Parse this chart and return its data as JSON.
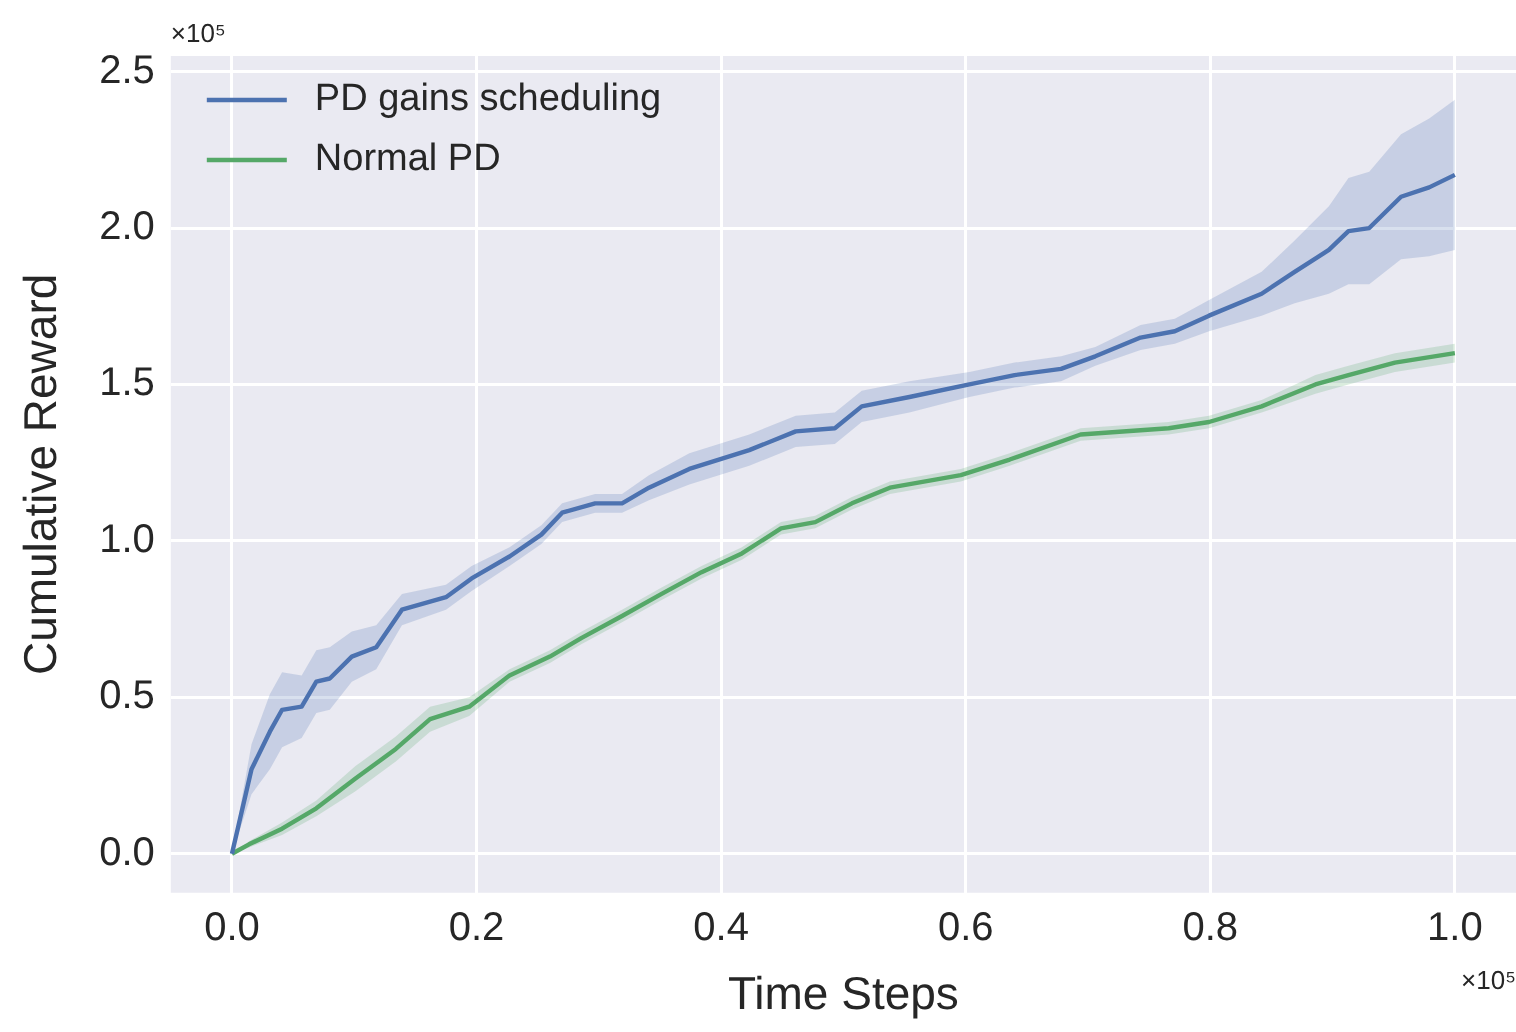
{
  "chart_data": {
    "type": "line",
    "xlabel": "Time Steps",
    "ylabel": "Cumulative Reward",
    "annotations": [
      "×10⁵",
      "×10⁵"
    ],
    "xlim": [
      -0.05,
      1.05
    ],
    "ylim": [
      -0.125,
      2.55
    ],
    "xticks": [
      {
        "value": 0,
        "label": "0.0"
      },
      {
        "value": 0.2,
        "label": "0.2"
      },
      {
        "value": 0.4,
        "label": "0.4"
      },
      {
        "value": 0.6,
        "label": "0.6"
      },
      {
        "value": 0.8,
        "label": "0.8"
      },
      {
        "value": 1,
        "label": "1.0"
      }
    ],
    "yticks": [
      {
        "value": 0,
        "label": "0.0"
      },
      {
        "value": 0.5,
        "label": "0.5"
      },
      {
        "value": 1,
        "label": "1.0"
      },
      {
        "value": 1.5,
        "label": "1.5"
      },
      {
        "value": 2,
        "label": "2.0"
      },
      {
        "value": 2.5,
        "label": "2.5"
      }
    ],
    "grid": true,
    "legend": "top left",
    "marker": "none",
    "line_style": "solid",
    "series": [
      {
        "name": "PD gains scheduling",
        "color": "#4c72b0",
        "x": [
          0,
          0.016,
          0.031,
          0.041,
          0.057,
          0.069,
          0.08,
          0.098,
          0.118,
          0.139,
          0.175,
          0.196,
          0.227,
          0.253,
          0.27,
          0.297,
          0.319,
          0.341,
          0.374,
          0.423,
          0.461,
          0.493,
          0.515,
          0.554,
          0.603,
          0.64,
          0.678,
          0.706,
          0.743,
          0.771,
          0.799,
          0.842,
          0.869,
          0.897,
          0.913,
          0.93,
          0.956,
          0.979,
          1.0
        ],
        "values": [
          0,
          0.27,
          0.39,
          0.46,
          0.47,
          0.55,
          0.56,
          0.63,
          0.66,
          0.78,
          0.82,
          0.88,
          0.95,
          1.02,
          1.09,
          1.12,
          1.12,
          1.17,
          1.23,
          1.29,
          1.35,
          1.36,
          1.43,
          1.46,
          1.5,
          1.53,
          1.55,
          1.59,
          1.65,
          1.67,
          1.72,
          1.79,
          1.86,
          1.93,
          1.99,
          2.0,
          2.1,
          2.13,
          2.17
        ],
        "lower": [
          0,
          0.19,
          0.27,
          0.34,
          0.37,
          0.45,
          0.46,
          0.55,
          0.59,
          0.73,
          0.78,
          0.84,
          0.92,
          0.99,
          1.06,
          1.09,
          1.09,
          1.13,
          1.18,
          1.24,
          1.3,
          1.31,
          1.38,
          1.41,
          1.46,
          1.49,
          1.51,
          1.56,
          1.61,
          1.63,
          1.67,
          1.72,
          1.76,
          1.79,
          1.82,
          1.82,
          1.9,
          1.91,
          1.93
        ],
        "upper": [
          0,
          0.35,
          0.51,
          0.58,
          0.57,
          0.65,
          0.66,
          0.71,
          0.73,
          0.83,
          0.86,
          0.92,
          0.98,
          1.05,
          1.12,
          1.15,
          1.15,
          1.21,
          1.28,
          1.34,
          1.4,
          1.41,
          1.48,
          1.51,
          1.54,
          1.57,
          1.59,
          1.62,
          1.69,
          1.71,
          1.77,
          1.86,
          1.96,
          2.07,
          2.16,
          2.18,
          2.3,
          2.35,
          2.41
        ]
      },
      {
        "name": "Normal PD",
        "color": "#55a868",
        "x": [
          0,
          0.014,
          0.041,
          0.069,
          0.101,
          0.134,
          0.162,
          0.194,
          0.227,
          0.26,
          0.286,
          0.319,
          0.351,
          0.384,
          0.417,
          0.449,
          0.477,
          0.507,
          0.538,
          0.596,
          0.636,
          0.694,
          0.766,
          0.799,
          0.842,
          0.886,
          0.913,
          0.951,
          1.0
        ],
        "values": [
          0,
          0.03,
          0.08,
          0.145,
          0.24,
          0.335,
          0.43,
          0.47,
          0.57,
          0.63,
          0.69,
          0.76,
          0.83,
          0.9,
          0.96,
          1.04,
          1.06,
          1.12,
          1.17,
          1.21,
          1.26,
          1.34,
          1.36,
          1.38,
          1.43,
          1.5,
          1.53,
          1.57,
          1.6
        ],
        "lower": [
          0,
          0.02,
          0.06,
          0.12,
          0.2,
          0.295,
          0.39,
          0.44,
          0.55,
          0.61,
          0.67,
          0.74,
          0.81,
          0.88,
          0.94,
          1.02,
          1.04,
          1.1,
          1.15,
          1.19,
          1.24,
          1.32,
          1.34,
          1.36,
          1.41,
          1.47,
          1.5,
          1.54,
          1.57
        ],
        "upper": [
          0,
          0.04,
          0.1,
          0.17,
          0.28,
          0.375,
          0.47,
          0.5,
          0.59,
          0.65,
          0.71,
          0.78,
          0.85,
          0.92,
          0.98,
          1.06,
          1.08,
          1.14,
          1.19,
          1.23,
          1.28,
          1.36,
          1.38,
          1.4,
          1.45,
          1.53,
          1.56,
          1.6,
          1.63
        ]
      }
    ]
  }
}
